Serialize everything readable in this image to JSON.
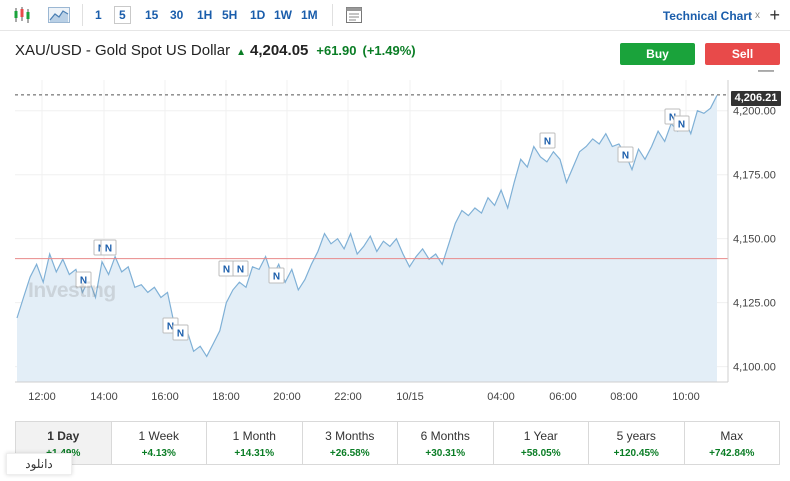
{
  "toolbar": {
    "timeframes": [
      "1",
      "5",
      "15",
      "30",
      "1H",
      "5H",
      "1D",
      "1W",
      "1M"
    ],
    "active_timeframe": "5",
    "technical_chart_label": "Technical Chart",
    "close_symbol": "x",
    "plus_symbol": "+",
    "icons": [
      "candlestick-icon",
      "area-chart-icon",
      "calendar-icon",
      "plus-icon"
    ]
  },
  "header": {
    "symbol": "XAU/USD - Gold Spot US Dollar",
    "price": "4,204.05",
    "change": "+61.90",
    "change_pct": "(+1.49%)",
    "buy_label": "Buy",
    "sell_label": "Sell",
    "minus_symbol": "—"
  },
  "colors": {
    "accent": "#1a5dab",
    "up": "#0a7d25",
    "buy": "#1aa33b",
    "sell": "#e84a4a",
    "line": "#7fb0d6",
    "fill": "#e3eef7",
    "prev_close_line": "#e88a8a"
  },
  "chart": {
    "watermark": "Investing",
    "last_price_tag": "4,206.21",
    "news_marker_label": "N"
  },
  "chart_data": {
    "type": "area",
    "x_tick_labels": [
      "12:00",
      "14:00",
      "16:00",
      "18:00",
      "20:00",
      "22:00",
      "10/15",
      "04:00",
      "06:00",
      "08:00",
      "10:00"
    ],
    "y_tick_labels": [
      "4,200.00",
      "4,175.00",
      "4,150.00",
      "4,125.00",
      "4,100.00"
    ],
    "y_ticks": [
      4200,
      4175,
      4150,
      4125,
      4100
    ],
    "ylim": [
      4094,
      4212
    ],
    "last_price": 4206.21,
    "previous_close": 4142.2,
    "grid": true,
    "series": [
      {
        "values": [
          4119,
          4127,
          4135,
          4140,
          4133,
          4144,
          4137,
          4142,
          4136,
          4138,
          4129,
          4134,
          4127,
          4141,
          4136,
          4143,
          4137,
          4139,
          4131,
          4132,
          4129,
          4131,
          4127,
          4129,
          4117,
          4111,
          4114,
          4106,
          4108,
          4104,
          4109,
          4114,
          4125,
          4130,
          4133,
          4131,
          4139,
          4138,
          4143,
          4135,
          4140,
          4133,
          4138,
          4130,
          4134,
          4140,
          4145,
          4152,
          4148,
          4150,
          4146,
          4152,
          4144,
          4147,
          4151,
          4145,
          4149,
          4147,
          4150,
          4144,
          4139,
          4143,
          4146,
          4142,
          4144,
          4140,
          4148,
          4156,
          4161,
          4159,
          4162,
          4160,
          4166,
          4163,
          4169,
          4162,
          4172,
          4181,
          4178,
          4186,
          4182,
          4180,
          4184,
          4181,
          4172,
          4178,
          4184,
          4186,
          4189,
          4187,
          4191,
          4186,
          4187,
          4183,
          4177,
          4185,
          4181,
          4186,
          4192,
          4188,
          4195,
          4192,
          4197,
          4191,
          4200,
          4199,
          4201,
          4206
        ]
      }
    ],
    "news_markers": [
      {
        "x_label": "13:30",
        "value": 4146
      },
      {
        "x_label": "14:00",
        "value": 4146
      },
      {
        "x_label": "12:40",
        "value": 4137
      },
      {
        "x_label": "16:30",
        "value": 4113
      },
      {
        "x_label": "16:50",
        "value": 4110
      },
      {
        "x_label": "18:00",
        "value": 4139
      },
      {
        "x_label": "18:20",
        "value": 4139
      },
      {
        "x_label": "19:30",
        "value": 4137
      },
      {
        "x_label": "05:30",
        "value": 4187
      },
      {
        "x_label": "08:00",
        "value": 4183
      },
      {
        "x_label": "09:40",
        "value": 4196
      },
      {
        "x_label": "09:50",
        "value": 4194
      }
    ]
  },
  "periods": [
    {
      "label": "1 Day",
      "change": "+1.49%",
      "active": true
    },
    {
      "label": "1 Week",
      "change": "+4.13%"
    },
    {
      "label": "1 Month",
      "change": "+14.31%"
    },
    {
      "label": "3 Months",
      "change": "+26.58%"
    },
    {
      "label": "6 Months",
      "change": "+30.31%"
    },
    {
      "label": "1 Year",
      "change": "+58.05%"
    },
    {
      "label": "5 years",
      "change": "+120.45%"
    },
    {
      "label": "Max",
      "change": "+742.84%"
    }
  ],
  "download_label": "دانلود"
}
